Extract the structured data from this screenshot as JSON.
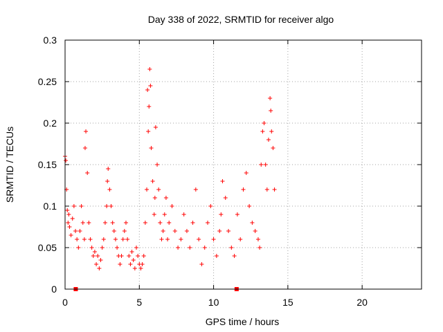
{
  "chart_data": {
    "type": "scatter",
    "title": "Day 338 of 2022, SRMTID for receiver algo",
    "xlabel": "GPS time / hours",
    "ylabel": "SRMTID / TECUs",
    "xlim": [
      0,
      24
    ],
    "ylim": [
      0,
      0.3
    ],
    "xticks": [
      0,
      5,
      10,
      15,
      20
    ],
    "yticks": [
      0,
      0.05,
      0.1,
      0.15,
      0.2,
      0.25,
      0.3
    ],
    "ytick_labels": [
      "0",
      "0.05",
      "0.1",
      "0.15",
      "0.2",
      "0.25",
      "0.3"
    ],
    "grid": true,
    "marker": "+",
    "color": "#ff0000",
    "zero_markers_x": [
      0.72,
      11.55
    ],
    "series": [
      {
        "name": "SRMTID",
        "x": [
          0.0,
          0.05,
          0.1,
          0.15,
          0.2,
          0.25,
          0.3,
          0.4,
          0.5,
          0.6,
          0.7,
          0.8,
          0.9,
          1.0,
          1.1,
          1.2,
          1.3,
          1.35,
          1.4,
          1.5,
          1.6,
          1.7,
          1.8,
          1.9,
          2.0,
          2.1,
          2.2,
          2.3,
          2.4,
          2.5,
          2.6,
          2.7,
          2.8,
          2.85,
          2.9,
          3.0,
          3.1,
          3.2,
          3.3,
          3.4,
          3.5,
          3.6,
          3.7,
          3.8,
          3.9,
          4.0,
          4.1,
          4.2,
          4.3,
          4.4,
          4.5,
          4.6,
          4.7,
          4.8,
          4.9,
          5.0,
          5.1,
          5.2,
          5.3,
          5.4,
          5.5,
          5.55,
          5.6,
          5.65,
          5.7,
          5.75,
          5.8,
          5.9,
          6.0,
          6.05,
          6.1,
          6.2,
          6.3,
          6.4,
          6.5,
          6.6,
          6.7,
          6.8,
          6.9,
          7.0,
          7.2,
          7.4,
          7.6,
          7.8,
          8.0,
          8.2,
          8.4,
          8.6,
          8.8,
          9.0,
          9.2,
          9.4,
          9.6,
          9.8,
          10.0,
          10.2,
          10.4,
          10.5,
          10.6,
          10.8,
          11.0,
          11.2,
          11.4,
          11.6,
          11.8,
          12.0,
          12.2,
          12.4,
          12.6,
          12.8,
          13.0,
          13.1,
          13.2,
          13.3,
          13.4,
          13.5,
          13.6,
          13.7,
          13.8,
          13.85,
          13.9,
          14.0,
          14.1
        ],
        "y": [
          0.16,
          0.155,
          0.12,
          0.095,
          0.08,
          0.09,
          0.075,
          0.065,
          0.085,
          0.1,
          0.07,
          0.06,
          0.05,
          0.07,
          0.1,
          0.08,
          0.06,
          0.17,
          0.19,
          0.14,
          0.08,
          0.06,
          0.05,
          0.04,
          0.045,
          0.03,
          0.04,
          0.025,
          0.035,
          0.05,
          0.06,
          0.08,
          0.1,
          0.13,
          0.145,
          0.12,
          0.1,
          0.08,
          0.07,
          0.06,
          0.05,
          0.04,
          0.03,
          0.04,
          0.06,
          0.07,
          0.08,
          0.06,
          0.04,
          0.03,
          0.045,
          0.035,
          0.025,
          0.05,
          0.04,
          0.03,
          0.025,
          0.03,
          0.04,
          0.08,
          0.12,
          0.24,
          0.19,
          0.22,
          0.265,
          0.245,
          0.17,
          0.13,
          0.09,
          0.11,
          0.195,
          0.15,
          0.12,
          0.08,
          0.06,
          0.07,
          0.09,
          0.11,
          0.06,
          0.08,
          0.1,
          0.07,
          0.05,
          0.06,
          0.09,
          0.07,
          0.05,
          0.08,
          0.12,
          0.06,
          0.03,
          0.05,
          0.08,
          0.1,
          0.06,
          0.04,
          0.07,
          0.09,
          0.13,
          0.11,
          0.07,
          0.05,
          0.04,
          0.09,
          0.06,
          0.12,
          0.14,
          0.1,
          0.08,
          0.07,
          0.06,
          0.05,
          0.15,
          0.19,
          0.2,
          0.15,
          0.12,
          0.18,
          0.23,
          0.215,
          0.19,
          0.17,
          0.12
        ]
      }
    ]
  }
}
